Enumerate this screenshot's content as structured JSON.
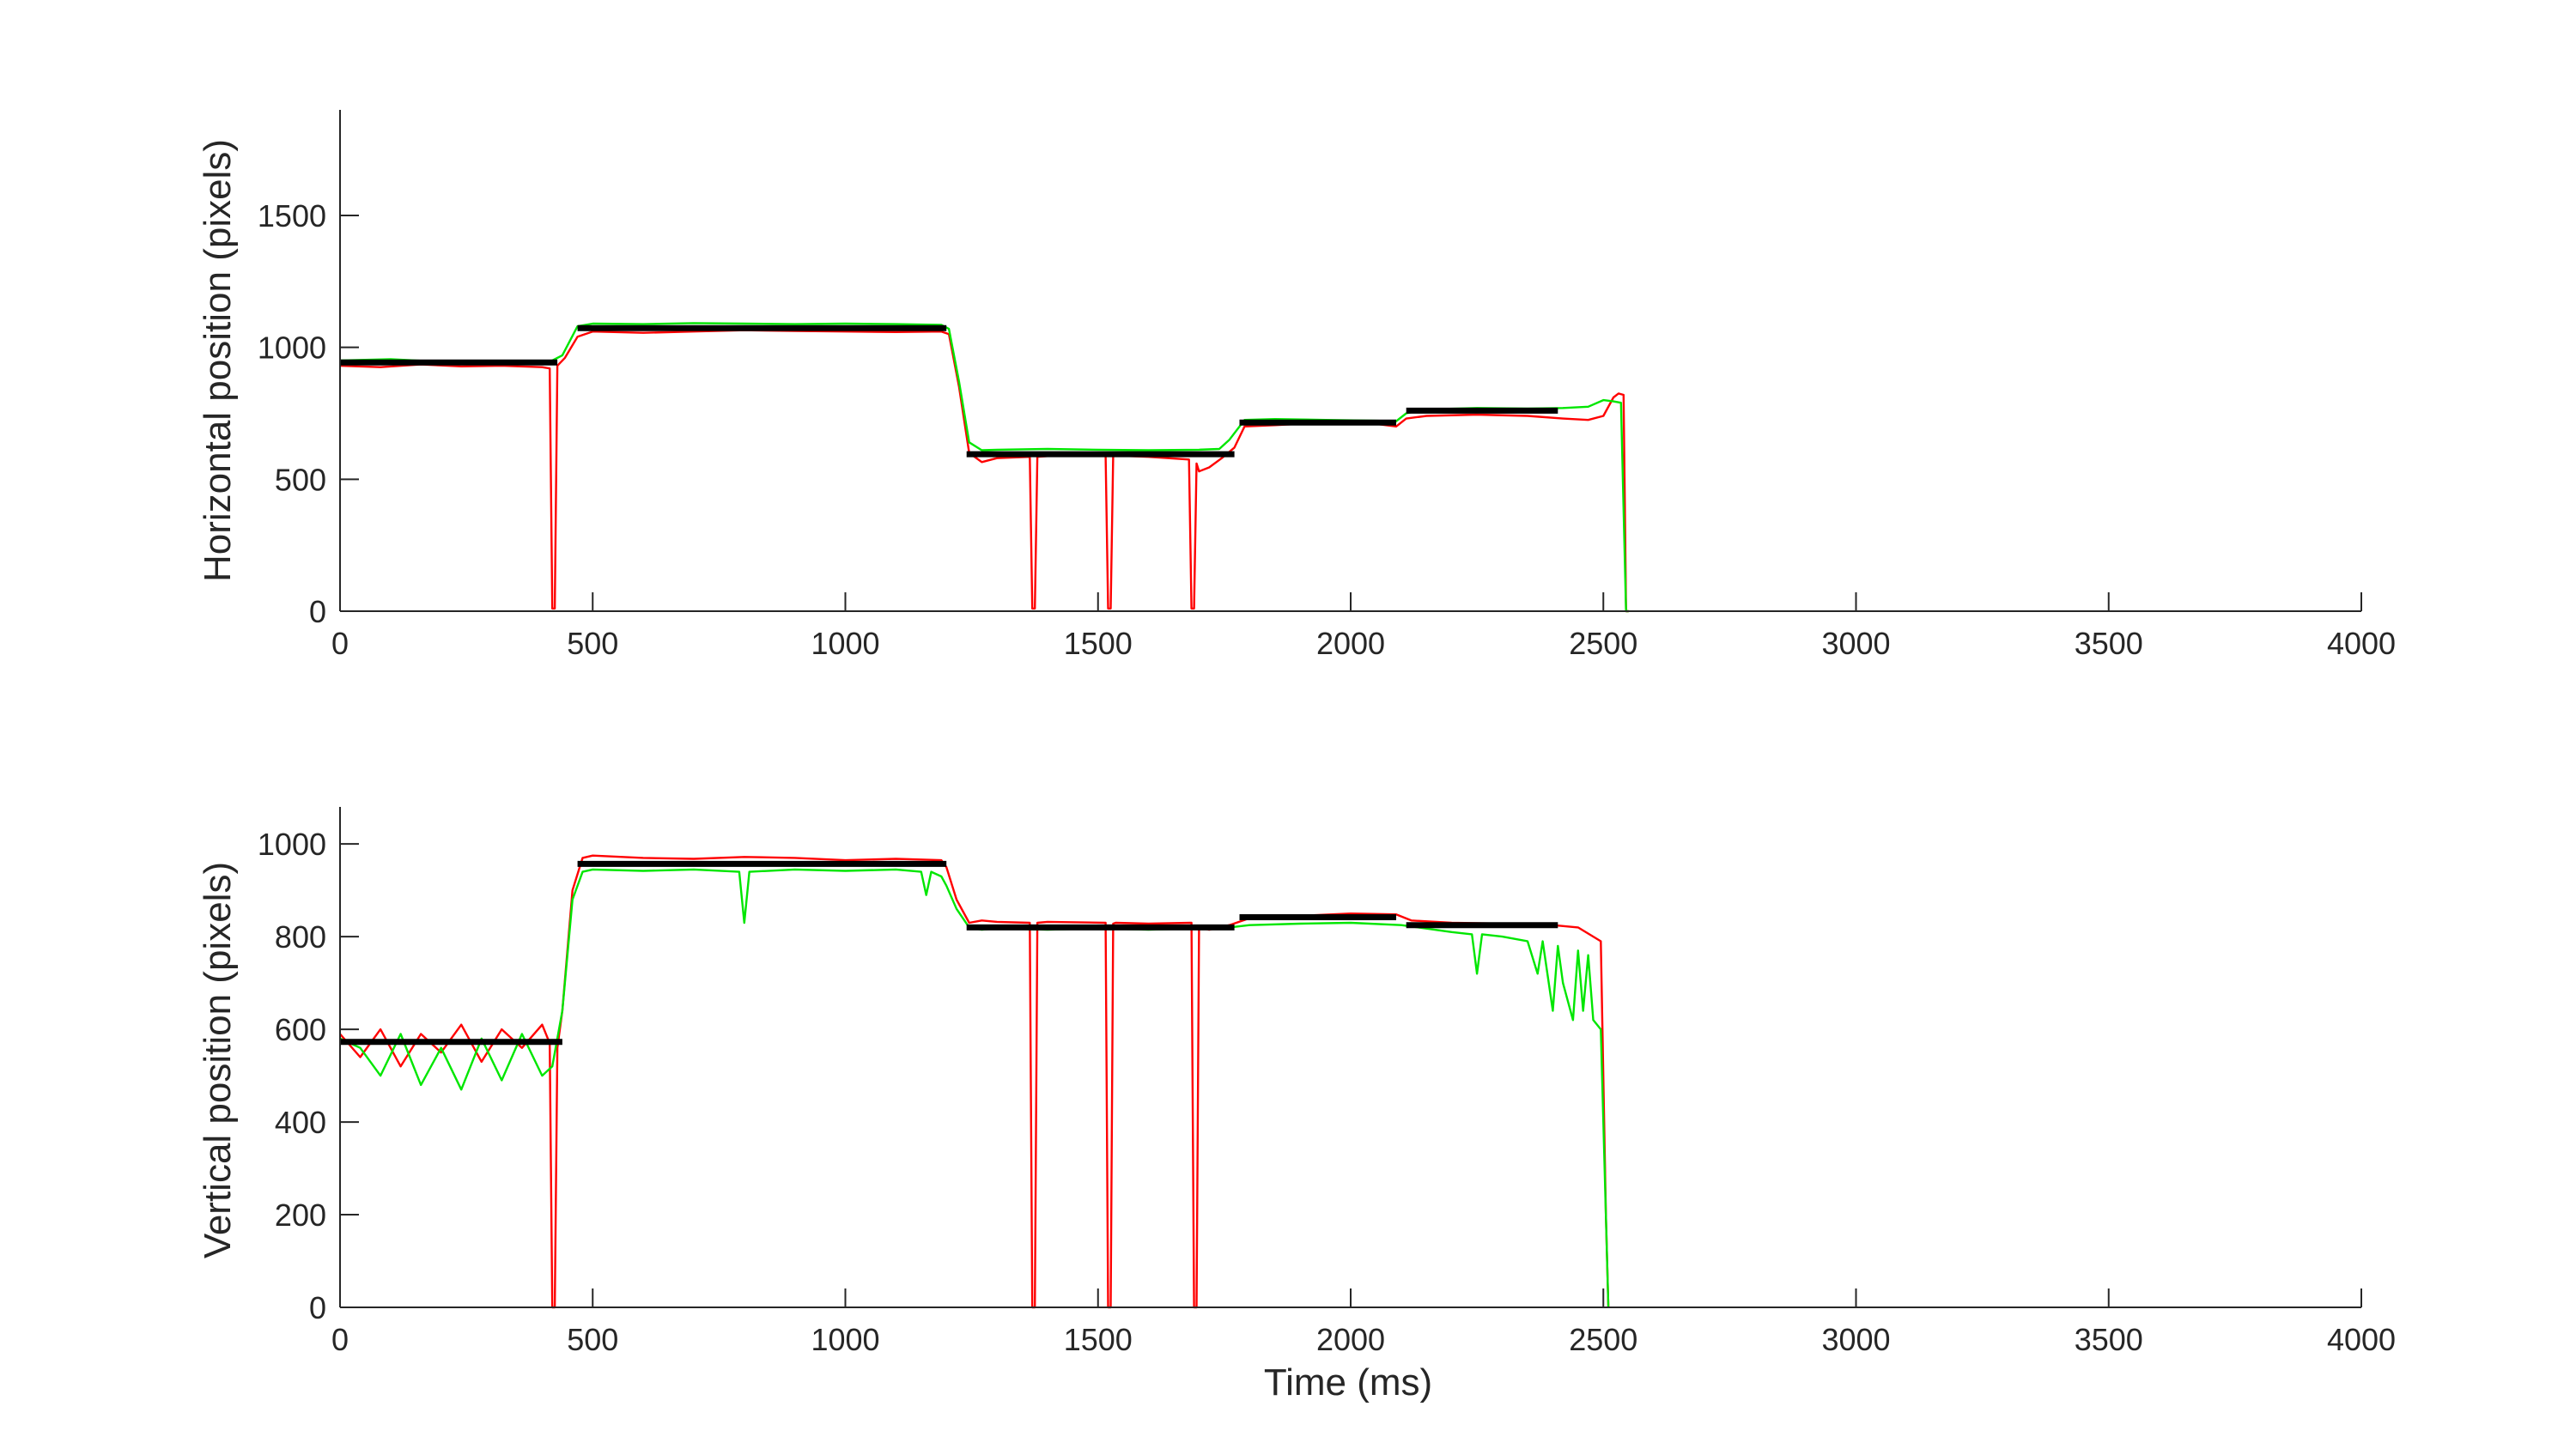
{
  "chart_data": [
    {
      "type": "line",
      "title": "",
      "xlabel": "",
      "ylabel": "Horizontal position (pixels)",
      "xlim": [
        0,
        4000
      ],
      "ylim": [
        0,
        1900
      ],
      "xticks": [
        0,
        500,
        1000,
        1500,
        2000,
        2500,
        3000,
        3500,
        4000
      ],
      "yticks": [
        0,
        500,
        1000,
        1500
      ],
      "grid": false,
      "legend": "none",
      "series": [
        {
          "color": "#ff0000",
          "x": [
            0,
            80,
            160,
            240,
            320,
            400,
            415,
            420,
            425,
            430,
            445,
            470,
            500,
            600,
            700,
            800,
            900,
            1000,
            1100,
            1190,
            1205,
            1225,
            1245,
            1270,
            1300,
            1365,
            1370,
            1375,
            1380,
            1400,
            1515,
            1520,
            1525,
            1530,
            1535,
            1600,
            1680,
            1685,
            1690,
            1695,
            1700,
            1720,
            1745,
            1770,
            1790,
            1850,
            1950,
            2050,
            2090,
            2110,
            2150,
            2250,
            2350,
            2420,
            2470,
            2500,
            2520,
            2530,
            2540,
            2545,
            2550
          ],
          "y": [
            930,
            925,
            935,
            928,
            930,
            925,
            920,
            10,
            10,
            930,
            960,
            1040,
            1060,
            1055,
            1060,
            1065,
            1062,
            1060,
            1058,
            1060,
            1050,
            850,
            600,
            565,
            580,
            585,
            10,
            10,
            585,
            588,
            590,
            10,
            10,
            588,
            590,
            585,
            575,
            10,
            10,
            560,
            530,
            545,
            580,
            620,
            700,
            705,
            715,
            710,
            700,
            730,
            740,
            745,
            740,
            730,
            725,
            740,
            810,
            825,
            820,
            0,
            0
          ]
        },
        {
          "color": "#00e600",
          "x": [
            0,
            100,
            200,
            300,
            400,
            420,
            440,
            470,
            500,
            600,
            700,
            800,
            900,
            1000,
            1100,
            1190,
            1205,
            1225,
            1245,
            1270,
            1300,
            1400,
            1500,
            1600,
            1700,
            1740,
            1760,
            1790,
            1850,
            1950,
            2050,
            2090,
            2110,
            2150,
            2250,
            2350,
            2420,
            2470,
            2500,
            2520,
            2535,
            2545,
            2550
          ],
          "y": [
            950,
            955,
            945,
            948,
            945,
            950,
            970,
            1080,
            1090,
            1088,
            1092,
            1090,
            1088,
            1090,
            1088,
            1085,
            1070,
            870,
            640,
            610,
            612,
            615,
            612,
            610,
            612,
            615,
            650,
            725,
            728,
            725,
            722,
            720,
            750,
            765,
            770,
            768,
            770,
            775,
            800,
            795,
            790,
            0,
            0
          ]
        },
        {
          "color": "#000000",
          "x": [
            0,
            430,
            null,
            470,
            1200,
            null,
            1240,
            1770,
            null,
            1780,
            2090,
            null,
            2110,
            2410
          ],
          "y": [
            943,
            943,
            null,
            1073,
            1073,
            null,
            595,
            595,
            null,
            715,
            715,
            null,
            760,
            760
          ]
        }
      ]
    },
    {
      "type": "line",
      "title": "",
      "xlabel": "Time (ms)",
      "ylabel": "Vertical position (pixels)",
      "xlim": [
        0,
        4000
      ],
      "ylim": [
        0,
        1080
      ],
      "xticks": [
        0,
        500,
        1000,
        1500,
        2000,
        2500,
        3000,
        3500,
        4000
      ],
      "yticks": [
        0,
        200,
        400,
        600,
        800,
        1000
      ],
      "grid": false,
      "legend": "none",
      "series": [
        {
          "color": "#ff0000",
          "x": [
            0,
            40,
            80,
            120,
            160,
            200,
            240,
            280,
            320,
            360,
            400,
            415,
            420,
            425,
            430,
            440,
            460,
            480,
            500,
            600,
            700,
            800,
            900,
            1000,
            1100,
            1190,
            1200,
            1220,
            1245,
            1270,
            1300,
            1365,
            1370,
            1375,
            1380,
            1400,
            1515,
            1520,
            1525,
            1530,
            1535,
            1600,
            1685,
            1690,
            1695,
            1700,
            1720,
            1760,
            1800,
            1900,
            2000,
            2090,
            2120,
            2200,
            2300,
            2400,
            2450,
            2480,
            2495,
            2505,
            2510
          ],
          "y": [
            590,
            540,
            600,
            520,
            590,
            550,
            610,
            530,
            600,
            560,
            610,
            570,
            0,
            0,
            560,
            640,
            900,
            970,
            975,
            970,
            968,
            972,
            970,
            965,
            968,
            965,
            950,
            880,
            830,
            835,
            832,
            830,
            0,
            0,
            830,
            832,
            830,
            0,
            0,
            828,
            830,
            828,
            830,
            0,
            0,
            820,
            815,
            825,
            840,
            845,
            850,
            848,
            835,
            830,
            828,
            825,
            820,
            800,
            790,
            200,
            0
          ]
        },
        {
          "color": "#00e600",
          "x": [
            0,
            40,
            80,
            120,
            160,
            200,
            240,
            280,
            320,
            360,
            400,
            420,
            440,
            460,
            480,
            500,
            600,
            700,
            790,
            800,
            810,
            900,
            1000,
            1100,
            1150,
            1160,
            1170,
            1190,
            1200,
            1220,
            1245,
            1270,
            1300,
            1400,
            1500,
            1600,
            1700,
            1760,
            1800,
            1900,
            2000,
            2100,
            2200,
            2240,
            2250,
            2260,
            2300,
            2350,
            2370,
            2380,
            2400,
            2410,
            2420,
            2440,
            2450,
            2460,
            2470,
            2480,
            2495,
            2505,
            2510
          ],
          "y": [
            580,
            560,
            500,
            590,
            480,
            560,
            470,
            580,
            490,
            590,
            500,
            520,
            640,
            880,
            940,
            945,
            942,
            945,
            940,
            830,
            940,
            945,
            942,
            945,
            940,
            890,
            940,
            930,
            910,
            860,
            820,
            815,
            818,
            815,
            818,
            815,
            818,
            820,
            825,
            828,
            830,
            825,
            810,
            805,
            720,
            805,
            800,
            790,
            720,
            790,
            640,
            780,
            700,
            620,
            770,
            640,
            760,
            620,
            600,
            200,
            0
          ]
        },
        {
          "color": "#000000",
          "x": [
            0,
            440,
            null,
            470,
            1200,
            null,
            1240,
            1770,
            null,
            1780,
            2090,
            null,
            2110,
            2410
          ],
          "y": [
            573,
            573,
            null,
            957,
            957,
            null,
            820,
            820,
            null,
            842,
            842,
            null,
            825,
            825
          ]
        }
      ]
    }
  ]
}
